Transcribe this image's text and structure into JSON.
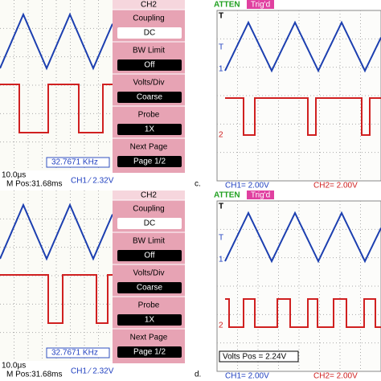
{
  "left": [
    {
      "menu": {
        "title": "CH2",
        "items": [
          {
            "label": "Coupling",
            "value": "DC"
          },
          {
            "label": "BW Limit",
            "value": "Off"
          },
          {
            "label": "Volts/Div",
            "value": "Coarse"
          },
          {
            "label": "Probe",
            "value": "1X"
          },
          {
            "label": "Next Page",
            "value": "Page 1/2"
          }
        ]
      },
      "frequency": "32.7671 KHz",
      "timebase": "10.0μs",
      "position": "M Pos:31.68ms",
      "trigger": "CH1 ⁄ 2.32V"
    },
    {
      "menu": {
        "title": "CH2",
        "items": [
          {
            "label": "Coupling",
            "value": "DC"
          },
          {
            "label": "BW Limit",
            "value": "Off"
          },
          {
            "label": "Volts/Div",
            "value": "Coarse"
          },
          {
            "label": "Probe",
            "value": "1X"
          },
          {
            "label": "Next Page",
            "value": "Page 1/2"
          }
        ]
      },
      "frequency": "32.7671 KHz",
      "timebase": "10.0μs",
      "position": "M Pos:31.68ms",
      "trigger": "CH1 ⁄ 2.32V"
    }
  ],
  "right": [
    {
      "status": "ATTEN",
      "trigger": "Trig'd",
      "ch1": "CH1= 2.00V",
      "ch2": "CH2= 2.00V"
    },
    {
      "status": "ATTEN",
      "trigger": "Trig'd",
      "ch1": "CH1= 2.00V",
      "ch2": "CH2= 2.00V",
      "note": "Volts Pos = 2.24V"
    }
  ],
  "labels": [
    "c.",
    "d."
  ]
}
